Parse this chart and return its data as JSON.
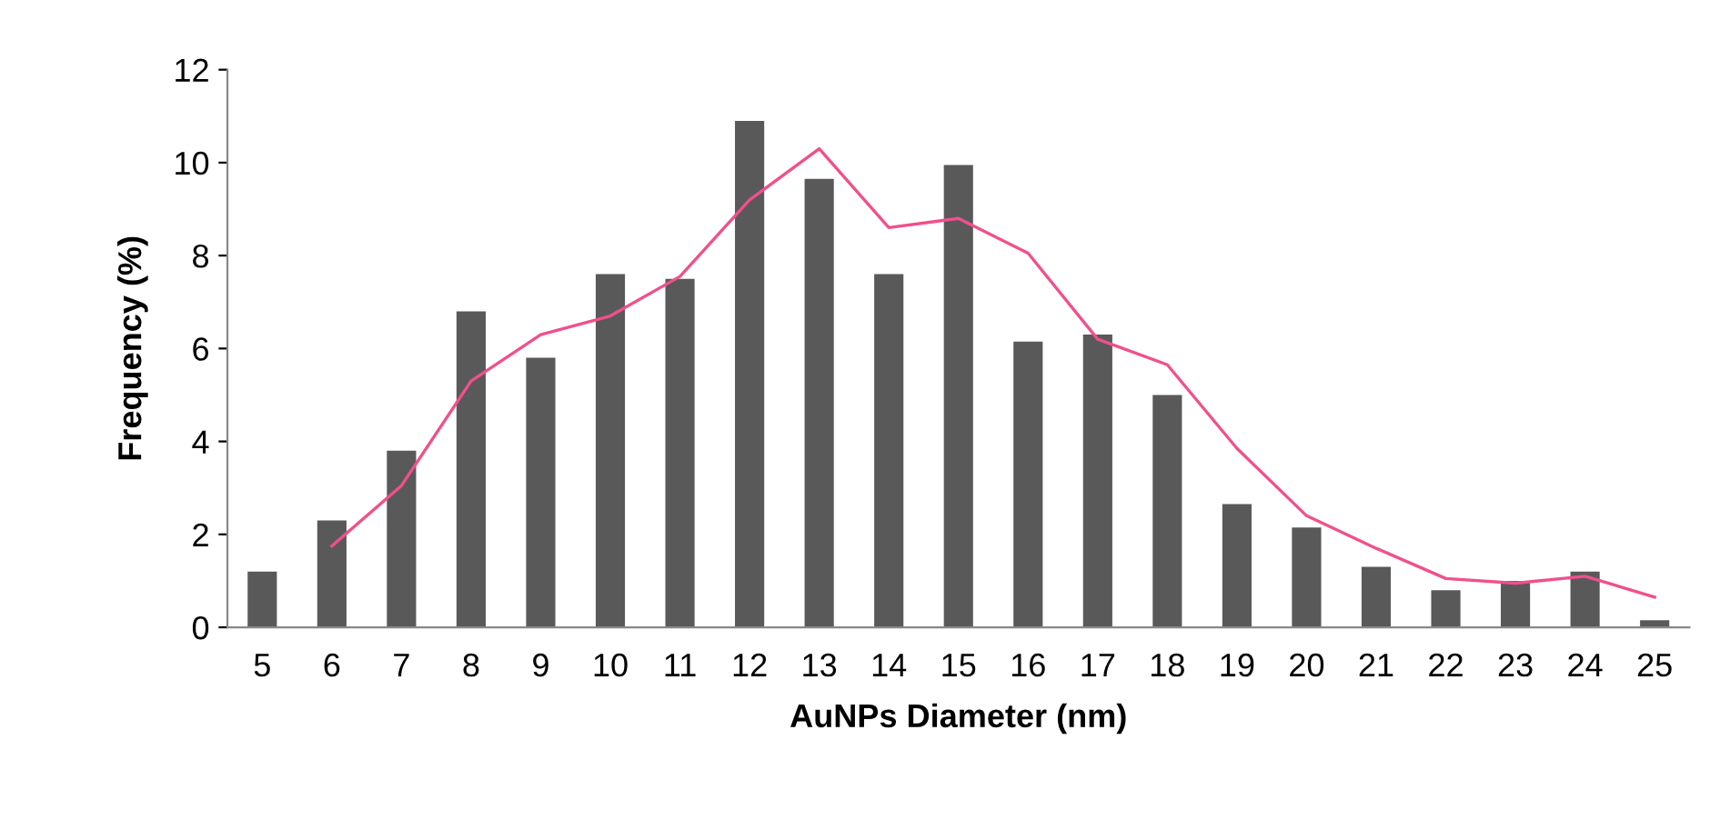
{
  "chart_data": {
    "type": "bar",
    "xlabel": "AuNPs Diameter (nm)",
    "ylabel": "Frequency (%)",
    "categories": [
      "5",
      "6",
      "7",
      "8",
      "9",
      "10",
      "11",
      "12",
      "13",
      "14",
      "15",
      "16",
      "17",
      "18",
      "19",
      "20",
      "21",
      "22",
      "23",
      "24",
      "25"
    ],
    "series": [
      {
        "color": "#595959",
        "values": [
          1.2,
          2.3,
          3.8,
          6.8,
          5.8,
          7.6,
          7.5,
          10.9,
          9.65,
          7.6,
          9.95,
          6.15,
          6.3,
          5.0,
          2.65,
          2.15,
          1.3,
          0.8,
          1.0,
          1.2,
          0.15
        ]
      },
      {
        "type": "line",
        "color": "#f0508c",
        "values": [
          null,
          1.75,
          3.05,
          5.3,
          6.3,
          6.7,
          7.55,
          9.2,
          10.3,
          8.6,
          8.8,
          8.05,
          6.2,
          5.65,
          3.85,
          2.4,
          1.7,
          1.05,
          0.95,
          1.1,
          0.65
        ]
      }
    ],
    "ylim": [
      0,
      12
    ],
    "yticks": [
      0,
      2,
      4,
      6,
      8,
      10,
      12
    ],
    "grid": false,
    "legend": false
  }
}
